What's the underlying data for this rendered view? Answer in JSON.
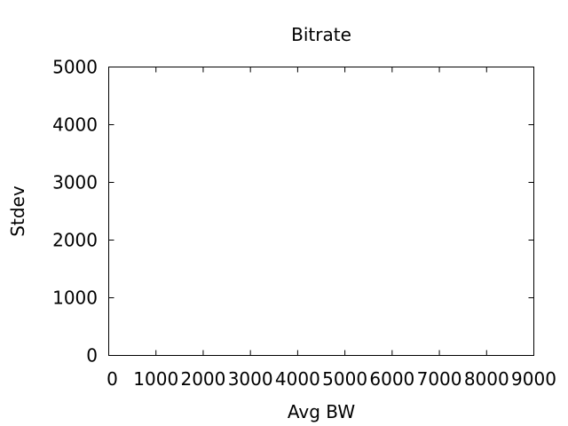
{
  "chart_data": {
    "type": "scatter",
    "title": "Bitrate",
    "xlabel": "Avg BW",
    "ylabel": "Stdev",
    "xlim": [
      0,
      9000
    ],
    "ylim": [
      0,
      5000
    ],
    "xticks": [
      0,
      1000,
      2000,
      3000,
      4000,
      5000,
      6000,
      7000,
      8000,
      9000
    ],
    "yticks": [
      0,
      1000,
      2000,
      3000,
      4000,
      5000
    ],
    "grid": false,
    "series": [
      {
        "points": []
      }
    ]
  }
}
